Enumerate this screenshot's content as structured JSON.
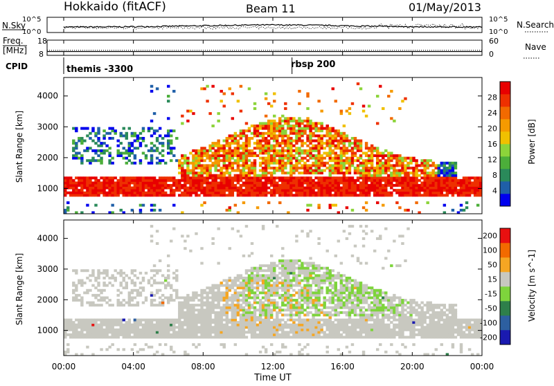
{
  "header": {
    "title": "Hokkaido (fitACF)",
    "beam": "Beam 11",
    "date": "01/May/2013"
  },
  "top_panels": {
    "nsky_label": "N.Sky",
    "nsky_ticks": [
      "10^5",
      "10^0"
    ],
    "nsearch_label": "N.Search",
    "nsearch_ticks": [
      "10^5",
      "10^0"
    ],
    "freq_label": "Freq.",
    "freq_unit": "[MHz]",
    "freq_ticks": [
      "18",
      "8"
    ],
    "nave_label": "Nave",
    "nave_ticks": [
      "60",
      "0"
    ],
    "cpid_label": "CPID",
    "cpid_segments": [
      {
        "name": "themis -3300",
        "start_hour": 0
      },
      {
        "name": "rbsp 200",
        "start_hour": 13.1
      }
    ]
  },
  "x_axis": {
    "label": "Time UT",
    "ticks": [
      "00:00",
      "04:00",
      "08:00",
      "12:00",
      "16:00",
      "20:00",
      "00:00"
    ],
    "range_hours": [
      0,
      24
    ]
  },
  "power_panel": {
    "ylabel": "Slant Range [km]",
    "yticks": [
      "1000",
      "2000",
      "3000",
      "4000"
    ],
    "colorbar_label": "Power [dB]",
    "colorbar_ticks": [
      "4",
      "8",
      "12",
      "16",
      "20",
      "24",
      "28"
    ],
    "colors": [
      "#0000ee",
      "#1f5fa8",
      "#2a8a5a",
      "#4cae3a",
      "#8cd43a",
      "#f0c000",
      "#f59a00",
      "#f26a00",
      "#ee3000",
      "#e80000"
    ]
  },
  "velocity_panel": {
    "ylabel": "Slant Range [km]",
    "yticks": [
      "1000",
      "2000",
      "3000",
      "4000"
    ],
    "colorbar_label": "Velocity [m s^-1]",
    "colorbar_ticks": [
      "200",
      "100",
      "50",
      "15",
      "-15",
      "-50",
      "-100",
      "-200"
    ],
    "colors": [
      "#1a1ab0",
      "#2d5fa0",
      "#2e7f4a",
      "#7ed43c",
      "#c8c8c0",
      "#f5a623",
      "#f26a00",
      "#e81010"
    ]
  },
  "chart_data": {
    "type": "heatmap",
    "title": "Hokkaido (fitACF)",
    "xlabel": "Time UT",
    "ylabel": "Slant Range [km]",
    "xlim": [
      0,
      24
    ],
    "ylim": [
      180,
      4600
    ],
    "series": [
      {
        "name": "Power [dB]",
        "range": [
          0,
          32
        ]
      },
      {
        "name": "Velocity [m s^-1]",
        "range": [
          -200,
          200
        ]
      }
    ],
    "freq_mhz": 10.5,
    "nave": 20
  }
}
